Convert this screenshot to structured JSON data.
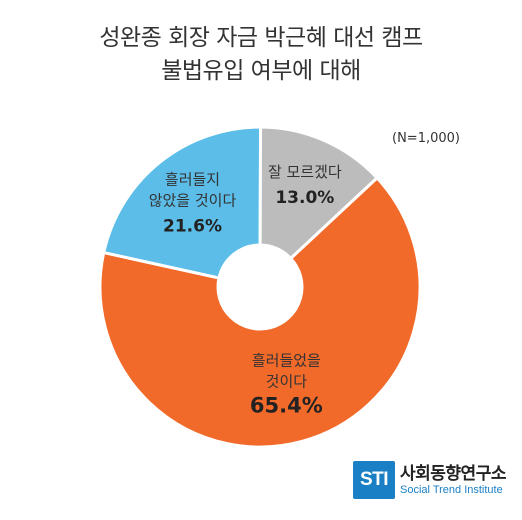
{
  "chart_data": {
    "type": "pie",
    "title_lines": [
      "성완종 회장 자금 박근혜 대선 캠프",
      "불법유입 여부에 대해"
    ],
    "note": "(N=1,000)",
    "slices": [
      {
        "label_lines": [
          "흘러들었을",
          "것이다"
        ],
        "value": 65.4,
        "value_label": "65.4%",
        "color": "#f26a2a"
      },
      {
        "label_lines": [
          "흘러들지",
          "않았을 것이다"
        ],
        "value": 21.6,
        "value_label": "21.6%",
        "color": "#5bbde8"
      },
      {
        "label_lines": [
          "잘 모르겠다"
        ],
        "value": 13.0,
        "value_label": "13.0%",
        "color": "#bdbcbc"
      }
    ]
  },
  "logo": {
    "mark": "STI",
    "name_kr": "사회동향연구소",
    "name_en": "Social Trend Institute"
  }
}
